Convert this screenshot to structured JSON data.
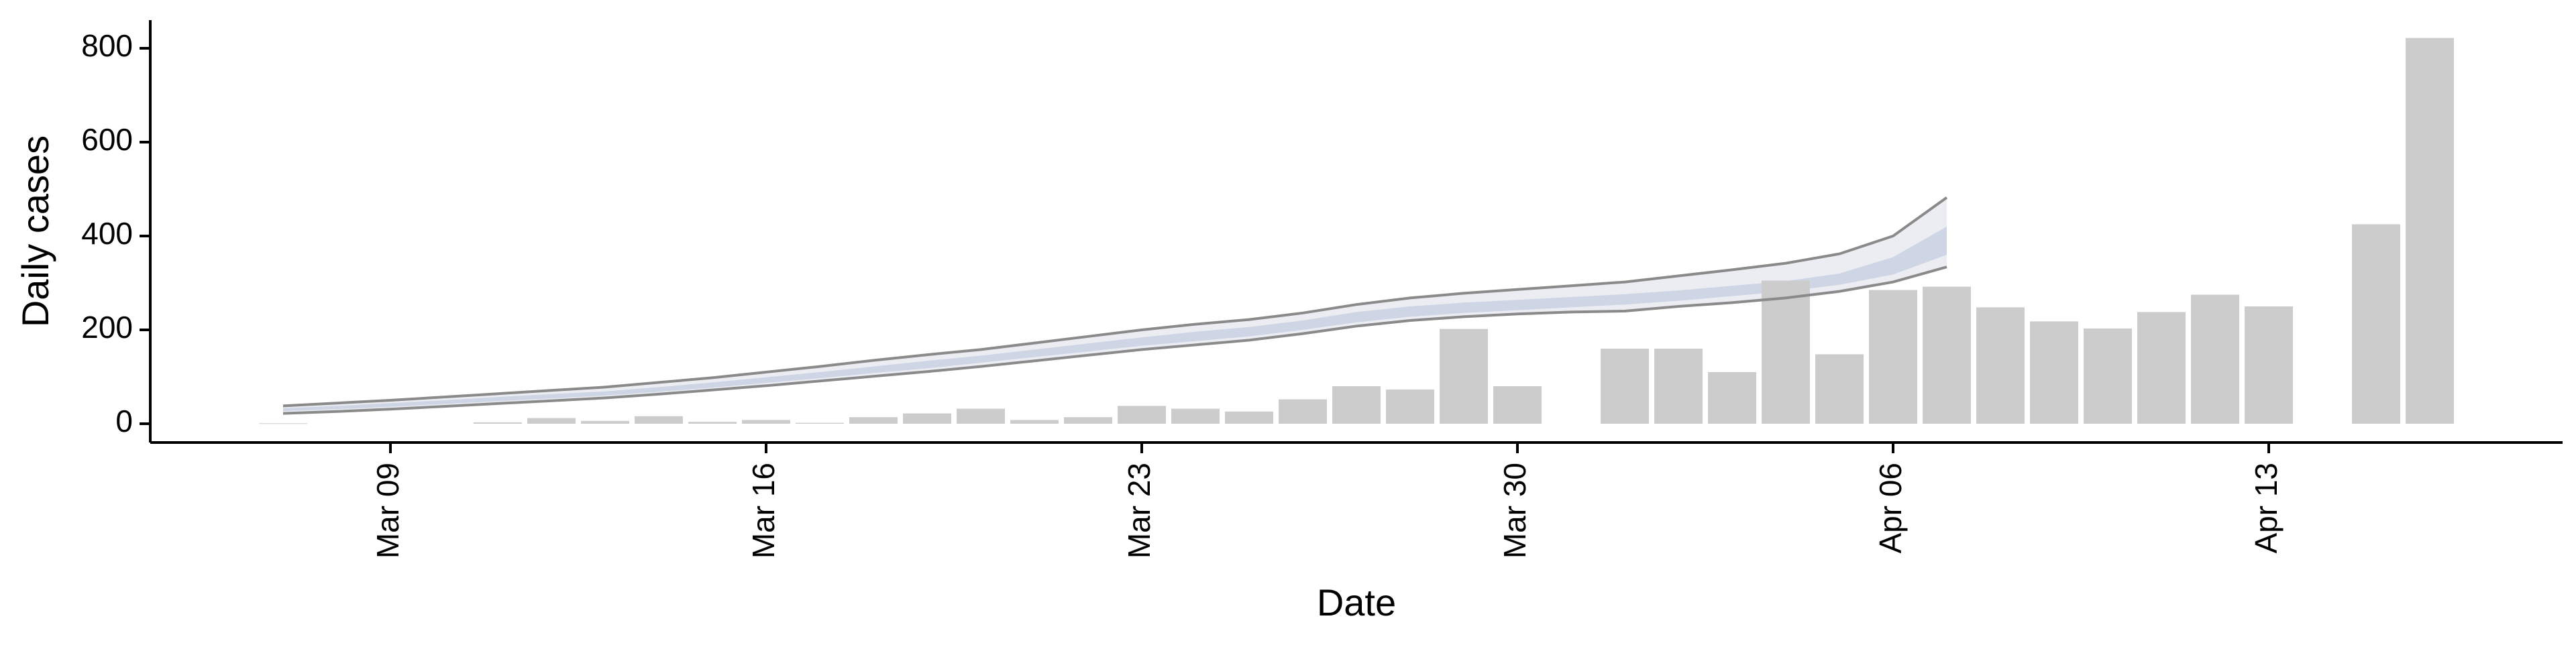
{
  "chart_data": {
    "type": "bar",
    "title": "",
    "xlabel": "Date",
    "ylabel": "Daily cases",
    "ylim": [
      -40,
      860
    ],
    "yticks": [
      0,
      200,
      400,
      600,
      800
    ],
    "x_start": "2020-03-07",
    "x_end": "2020-04-17",
    "xticks": [
      {
        "date": "2020-03-09",
        "label": "Mar 09"
      },
      {
        "date": "2020-03-16",
        "label": "Mar 16"
      },
      {
        "date": "2020-03-23",
        "label": "Mar 23"
      },
      {
        "date": "2020-03-30",
        "label": "Mar 30"
      },
      {
        "date": "2020-04-06",
        "label": "Apr 06"
      },
      {
        "date": "2020-04-13",
        "label": "Apr 13"
      }
    ],
    "bars": {
      "color": "#cccccc",
      "dates": [
        "2020-03-07",
        "2020-03-08",
        "2020-03-09",
        "2020-03-10",
        "2020-03-11",
        "2020-03-12",
        "2020-03-13",
        "2020-03-14",
        "2020-03-15",
        "2020-03-16",
        "2020-03-17",
        "2020-03-18",
        "2020-03-19",
        "2020-03-20",
        "2020-03-21",
        "2020-03-22",
        "2020-03-23",
        "2020-03-24",
        "2020-03-25",
        "2020-03-26",
        "2020-03-27",
        "2020-03-28",
        "2020-03-29",
        "2020-03-30",
        "2020-03-31",
        "2020-04-01",
        "2020-04-02",
        "2020-04-03",
        "2020-04-04",
        "2020-04-05",
        "2020-04-06",
        "2020-04-07",
        "2020-04-08",
        "2020-04-09",
        "2020-04-10",
        "2020-04-11",
        "2020-04-12",
        "2020-04-13",
        "2020-04-14",
        "2020-04-15",
        "2020-04-16",
        "2020-04-17"
      ],
      "values": [
        1,
        0,
        0,
        0,
        3,
        12,
        6,
        16,
        4,
        8,
        2,
        14,
        22,
        32,
        8,
        14,
        38,
        32,
        26,
        52,
        80,
        73,
        202,
        80,
        0,
        160,
        160,
        110,
        305,
        148,
        285,
        292,
        248,
        218,
        203,
        238,
        275,
        250,
        0,
        425,
        822,
        0
      ]
    },
    "nowcast": {
      "dates": [
        "2020-03-07",
        "2020-03-08",
        "2020-03-09",
        "2020-03-10",
        "2020-03-11",
        "2020-03-12",
        "2020-03-13",
        "2020-03-14",
        "2020-03-15",
        "2020-03-16",
        "2020-03-17",
        "2020-03-18",
        "2020-03-19",
        "2020-03-20",
        "2020-03-21",
        "2020-03-22",
        "2020-03-23",
        "2020-03-24",
        "2020-03-25",
        "2020-03-26",
        "2020-03-27",
        "2020-03-28",
        "2020-03-29",
        "2020-03-30",
        "2020-03-31",
        "2020-04-01",
        "2020-04-02",
        "2020-04-03",
        "2020-04-04",
        "2020-04-05",
        "2020-04-06",
        "2020-04-07"
      ],
      "upper90": [
        38,
        44,
        50,
        57,
        64,
        71,
        78,
        88,
        98,
        110,
        122,
        135,
        147,
        158,
        172,
        186,
        200,
        212,
        222,
        236,
        254,
        268,
        278,
        286,
        294,
        302,
        315,
        328,
        342,
        362,
        400,
        482
      ],
      "upper50": [
        33,
        38,
        44,
        50,
        57,
        63,
        69,
        78,
        88,
        99,
        110,
        122,
        134,
        145,
        158,
        171,
        184,
        196,
        206,
        220,
        238,
        250,
        258,
        264,
        270,
        276,
        284,
        294,
        304,
        320,
        355,
        420
      ],
      "lower50": [
        27,
        31,
        36,
        42,
        48,
        54,
        60,
        68,
        77,
        87,
        97,
        108,
        118,
        130,
        142,
        154,
        166,
        176,
        186,
        200,
        216,
        228,
        236,
        242,
        248,
        254,
        262,
        272,
        282,
        296,
        318,
        360
      ],
      "lower90": [
        22,
        26,
        31,
        37,
        43,
        49,
        55,
        63,
        72,
        81,
        91,
        101,
        111,
        122,
        134,
        146,
        158,
        168,
        178,
        192,
        208,
        220,
        228,
        234,
        238,
        240,
        250,
        258,
        268,
        282,
        302,
        334
      ]
    },
    "legend": "none",
    "grid": false
  }
}
